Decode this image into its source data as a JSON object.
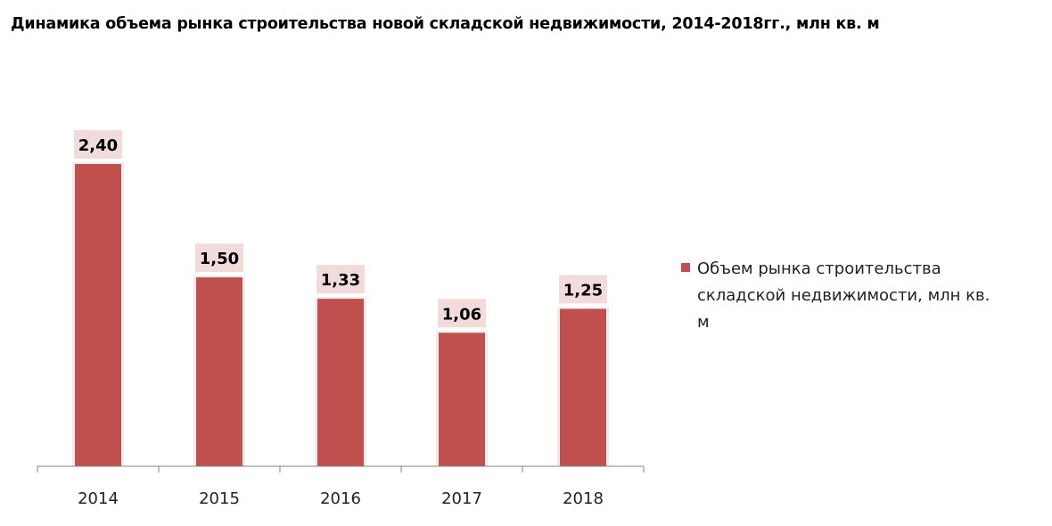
{
  "chart_data": {
    "type": "bar",
    "title": "Динамика объема рынка строительства новой складской недвижимости, 2014-2018гг., млн кв. м",
    "categories": [
      "2014",
      "2015",
      "2016",
      "2017",
      "2018"
    ],
    "series": [
      {
        "name": "Объем рынка строительства складской недвижимости, млн кв. м",
        "values": [
          2.4,
          1.5,
          1.33,
          1.06,
          1.25
        ],
        "labels": [
          "2,40",
          "1,50",
          "1,33",
          "1,06",
          "1,25"
        ]
      }
    ],
    "ylim": [
      0,
      2.4
    ],
    "grid": false,
    "legend_position": "right",
    "xlabel": "",
    "ylabel": ""
  },
  "colors": {
    "bar": "#c0504d",
    "label_bg": "#f2dcdb",
    "axis": "#868686",
    "shadow": "#e6e6e6"
  }
}
